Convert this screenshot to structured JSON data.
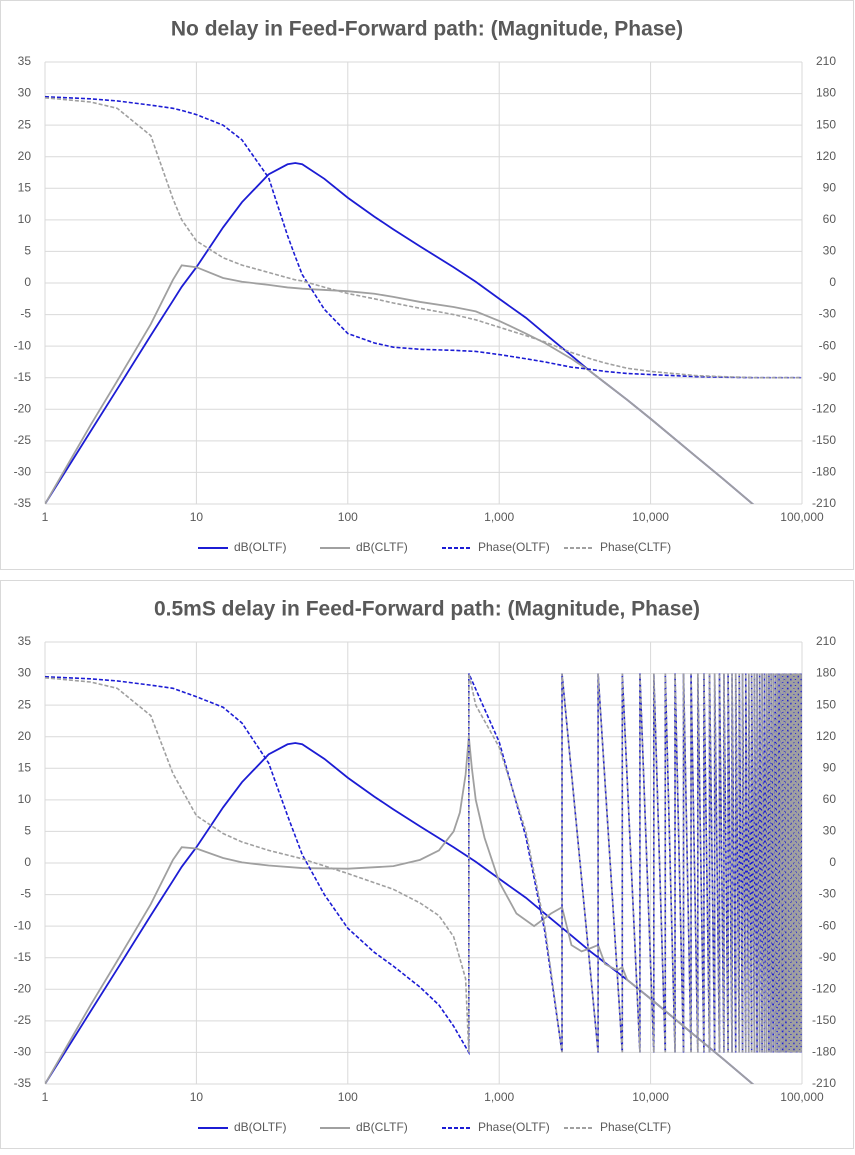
{
  "chart_data": [
    {
      "type": "line",
      "title": "No delay in Feed-Forward path: (Magnitude, Phase)",
      "xscale": "log",
      "grid": true,
      "legend": "bottom",
      "xlim": [
        1,
        100000
      ],
      "xticks": [
        1,
        10,
        100,
        {
          "value": 1000,
          "label": "1,000"
        },
        {
          "value": 10000,
          "label": "10,000"
        },
        {
          "value": 100000,
          "label": "100,000"
        }
      ],
      "ylim": [
        -35,
        35
      ],
      "yticks": [
        -35,
        -30,
        -25,
        -20,
        -15,
        -10,
        -5,
        0,
        5,
        10,
        15,
        20,
        25,
        30,
        35
      ],
      "y2lim": [
        -210,
        210
      ],
      "y2ticks": [
        -210,
        -180,
        -150,
        -120,
        -90,
        -60,
        -30,
        0,
        30,
        60,
        90,
        120,
        150,
        180,
        210
      ],
      "x": [
        1,
        2,
        3,
        5,
        7,
        8,
        10,
        15,
        20,
        30,
        40,
        45,
        50,
        70,
        100,
        150,
        200,
        300,
        500,
        700,
        1000,
        1500,
        2000,
        3000,
        4000,
        5000,
        7000,
        10000,
        20000,
        30000,
        50000,
        100000
      ],
      "series": [
        {
          "name": "dB(OLTF)",
          "color": "#1c1cd4",
          "dash": false,
          "values": [
            -35,
            -23.5,
            -16.8,
            -8.3,
            -2.8,
            -0.6,
            2.5,
            8.8,
            12.8,
            17.2,
            18.8,
            19,
            18.8,
            16.5,
            13.5,
            10.5,
            8.5,
            5.8,
            2.5,
            0.2,
            -2.5,
            -5.5,
            -8,
            -11.5,
            -14,
            -15.8,
            -18.5,
            -21.5,
            -27.5,
            -31,
            -35.5,
            -41.5
          ]
        },
        {
          "name": "dB(CLTF)",
          "color": "#a0a0a0",
          "dash": false,
          "values": [
            -35,
            -22.5,
            -15.5,
            -6.5,
            0.5,
            2.8,
            2.5,
            0.8,
            0.2,
            -0.3,
            -0.7,
            -0.8,
            -0.9,
            -1.1,
            -1.3,
            -1.7,
            -2.2,
            -3,
            -3.8,
            -4.5,
            -6,
            -8,
            -9.5,
            -12,
            -14,
            -15.8,
            -18.5,
            -21.5,
            -27.5,
            -31,
            -35.5,
            -41.5
          ]
        },
        {
          "name": "Phase(OLTF)",
          "color": "#1c1cd4",
          "dash": true,
          "axis": "y2",
          "values": [
            177,
            175,
            173,
            169,
            166,
            164,
            160,
            150,
            136,
            100,
            45,
            25,
            8,
            -25,
            -48,
            -57,
            -61,
            -63,
            -64,
            -65,
            -68,
            -72,
            -75,
            -80,
            -82,
            -84,
            -86,
            -87,
            -89,
            -89.5,
            -90,
            -90
          ]
        },
        {
          "name": "Phase(CLTF)",
          "color": "#a0a0a0",
          "dash": true,
          "axis": "y2",
          "values": [
            176,
            172,
            166,
            140,
            80,
            60,
            40,
            24,
            17,
            10,
            5,
            3,
            2,
            -4,
            -10,
            -15,
            -19,
            -24,
            -30,
            -35,
            -42,
            -50,
            -56,
            -66,
            -72,
            -76,
            -81,
            -84,
            -88,
            -89,
            -90,
            -90
          ]
        }
      ]
    },
    {
      "type": "line",
      "title": "0.5mS delay in Feed-Forward path: (Magnitude, Phase)",
      "xscale": "log",
      "grid": true,
      "legend": "bottom",
      "xlim": [
        1,
        100000
      ],
      "xticks": [
        1,
        10,
        100,
        {
          "value": 1000,
          "label": "1,000"
        },
        {
          "value": 10000,
          "label": "10,000"
        },
        {
          "value": 100000,
          "label": "100,000"
        }
      ],
      "ylim": [
        -35,
        35
      ],
      "yticks": [
        -35,
        -30,
        -25,
        -20,
        -15,
        -10,
        -5,
        0,
        5,
        10,
        15,
        20,
        25,
        30,
        35
      ],
      "y2lim": [
        -210,
        210
      ],
      "y2ticks": [
        -210,
        -180,
        -150,
        -120,
        -90,
        -60,
        -30,
        0,
        30,
        60,
        90,
        120,
        150,
        180,
        210
      ],
      "series": [
        {
          "name": "dB(OLTF)",
          "color": "#1c1cd4",
          "dash": false,
          "x": [
            1,
            2,
            3,
            5,
            7,
            8,
            10,
            15,
            20,
            30,
            40,
            45,
            50,
            70,
            100,
            150,
            200,
            300,
            500,
            700,
            1000,
            1500,
            2000,
            3000,
            4000,
            5000,
            7000,
            10000,
            20000,
            30000,
            50000,
            100000
          ],
          "values": [
            -35,
            -23.5,
            -16.8,
            -8.3,
            -2.8,
            -0.6,
            2.5,
            8.8,
            12.8,
            17.2,
            18.8,
            19,
            18.8,
            16.5,
            13.5,
            10.5,
            8.5,
            5.8,
            2.5,
            0.2,
            -2.5,
            -5.5,
            -8,
            -11.5,
            -14,
            -15.8,
            -18.5,
            -21.5,
            -27.5,
            -31,
            -35.5,
            -41.5
          ]
        },
        {
          "name": "dB(CLTF)",
          "color": "#a0a0a0",
          "dash": false,
          "x": [
            1,
            2,
            3,
            5,
            7,
            8,
            10,
            15,
            20,
            30,
            50,
            100,
            200,
            300,
            400,
            500,
            550,
            600,
            630,
            660,
            700,
            800,
            1000,
            1300,
            1700,
            2200,
            2600,
            3000,
            3500,
            4000,
            4500,
            5000,
            6000,
            6500,
            7000,
            10000,
            20000,
            30000,
            50000,
            100000
          ],
          "values": [
            -35,
            -22.5,
            -15.5,
            -6.5,
            0.5,
            2.5,
            2.3,
            0.8,
            0.1,
            -0.4,
            -0.8,
            -0.9,
            -0.5,
            0.5,
            2,
            5,
            8,
            14,
            20,
            15,
            10,
            4,
            -3,
            -8,
            -10,
            -8,
            -7,
            -13,
            -14,
            -13.5,
            -13,
            -16,
            -17,
            -16.5,
            -18.5,
            -21.5,
            -27.5,
            -31,
            -35.5,
            -41.5
          ]
        },
        {
          "name": "Phase(OLTF)",
          "color": "#1c1cd4",
          "dash": true,
          "axis": "y2",
          "x": [
            1,
            2,
            3,
            5,
            7,
            10,
            15,
            20,
            30,
            40,
            50,
            70,
            100,
            150,
            200,
            300,
            400,
            500,
            630,
            630,
            1000,
            1500,
            2000,
            2600,
            2600,
            4500,
            4500,
            6500,
            6500,
            8500,
            8500,
            10500,
            10500,
            12500,
            12500,
            14500,
            14500,
            16500,
            16500,
            18500,
            18500,
            20500,
            20500,
            22500,
            22500,
            24500,
            24500,
            26500,
            26500,
            28500,
            28500,
            30500,
            30500,
            32500,
            32500,
            34500,
            34500,
            36500,
            36500,
            38500,
            38500,
            40500,
            40500,
            42500,
            42500,
            44500,
            44500,
            46500,
            46500,
            48500,
            48500,
            50500,
            50500,
            52500,
            52500,
            54500,
            54500,
            56500,
            56500,
            58500,
            58500,
            60500,
            60500,
            62500,
            62500,
            64500,
            64500,
            66500,
            66500,
            68500,
            68500,
            70500,
            70500,
            72500,
            72500,
            74500,
            74500,
            76500,
            76500,
            78500,
            78500,
            80500,
            80500,
            82500,
            82500,
            84500,
            84500,
            86500,
            86500,
            88500,
            88500,
            90500,
            90500,
            92500,
            92500,
            94500,
            94500,
            96500,
            96500,
            98500,
            98500,
            100000
          ],
          "values": [
            177,
            175,
            173,
            169,
            166,
            158,
            148,
            133,
            95,
            45,
            8,
            -30,
            -62,
            -85,
            -98,
            -118,
            -135,
            -155,
            -180,
            180,
            115,
            25,
            -65,
            -180,
            180,
            -180,
            180,
            -180,
            180,
            -180,
            180,
            -180,
            180,
            -180,
            180,
            -180,
            180,
            -180,
            180,
            -180,
            180,
            -180,
            180,
            -180,
            180,
            -180,
            180,
            -180,
            180,
            -180,
            180,
            -180,
            180,
            -180,
            180,
            -180,
            180,
            -180,
            180,
            -180,
            180,
            -180,
            180,
            -180,
            180,
            -180,
            180,
            -180,
            180,
            -180,
            180,
            -180,
            180,
            -180,
            180,
            -180,
            180,
            -180,
            180,
            -180,
            180,
            -180,
            180,
            -180,
            180,
            -180,
            180,
            -180,
            180,
            -180,
            180,
            -180,
            180,
            -180,
            180,
            -180,
            180,
            -180,
            180,
            -180,
            180,
            -180,
            180,
            -180,
            180,
            -180,
            180,
            -180,
            180,
            -180,
            180,
            -180,
            180,
            -180,
            180,
            -180,
            180,
            -180,
            180,
            -180,
            180,
            -90
          ]
        },
        {
          "name": "Phase(CLTF)",
          "color": "#a0a0a0",
          "dash": true,
          "axis": "y2",
          "x": [
            1,
            2,
            3,
            5,
            7,
            10,
            15,
            20,
            30,
            50,
            100,
            200,
            300,
            400,
            500,
            600,
            630,
            630,
            700,
            1000,
            1500,
            2000,
            2600,
            2600,
            4500,
            4500,
            6500,
            6500,
            8500,
            8500,
            10500,
            10500,
            12500,
            12500,
            14500,
            14500,
            16500,
            16500,
            18500,
            18500,
            20500,
            20500,
            22500,
            22500,
            24500,
            24500,
            26500,
            26500,
            28500,
            28500,
            30500,
            30500,
            32500,
            32500,
            34500,
            34500,
            36500,
            36500,
            38500,
            38500,
            40500,
            40500,
            42500,
            42500,
            44500,
            44500,
            46500,
            46500,
            48500,
            48500,
            50500,
            50500,
            52500,
            52500,
            54500,
            54500,
            56500,
            56500,
            58500,
            58500,
            60500,
            60500,
            62500,
            62500,
            64500,
            64500,
            66500,
            66500,
            68500,
            68500,
            70500,
            70500,
            72500,
            72500,
            74500,
            74500,
            76500,
            76500,
            78500,
            78500,
            80500,
            80500,
            82500,
            82500,
            84500,
            84500,
            86500,
            86500,
            88500,
            88500,
            90500,
            90500,
            92500,
            92500,
            94500,
            94500,
            96500,
            96500,
            98500,
            98500,
            100000
          ],
          "values": [
            176,
            172,
            166,
            140,
            85,
            45,
            28,
            20,
            12,
            4,
            -10,
            -25,
            -38,
            -50,
            -70,
            -110,
            -180,
            180,
            150,
            110,
            30,
            -60,
            -180,
            180,
            -180,
            180,
            -180,
            180,
            -180,
            180,
            -180,
            180,
            -180,
            180,
            -180,
            180,
            -180,
            180,
            -180,
            180,
            -180,
            180,
            -180,
            180,
            -180,
            180,
            -180,
            180,
            -180,
            180,
            -180,
            180,
            -180,
            180,
            -180,
            180,
            -180,
            180,
            -180,
            180,
            -180,
            180,
            -180,
            180,
            -180,
            180,
            -180,
            180,
            -180,
            180,
            -180,
            180,
            -180,
            180,
            -180,
            180,
            -180,
            180,
            -180,
            180,
            -180,
            180,
            -180,
            180,
            -180,
            180,
            -180,
            180,
            -180,
            180,
            -180,
            180,
            -180,
            180,
            -180,
            180,
            -180,
            180,
            -180,
            180,
            -180,
            180,
            -180,
            180,
            -180,
            180,
            -180,
            180,
            -180,
            180,
            -180,
            180,
            -180,
            180,
            -180,
            180,
            -180,
            180,
            -180,
            180,
            -90
          ]
        }
      ]
    }
  ]
}
